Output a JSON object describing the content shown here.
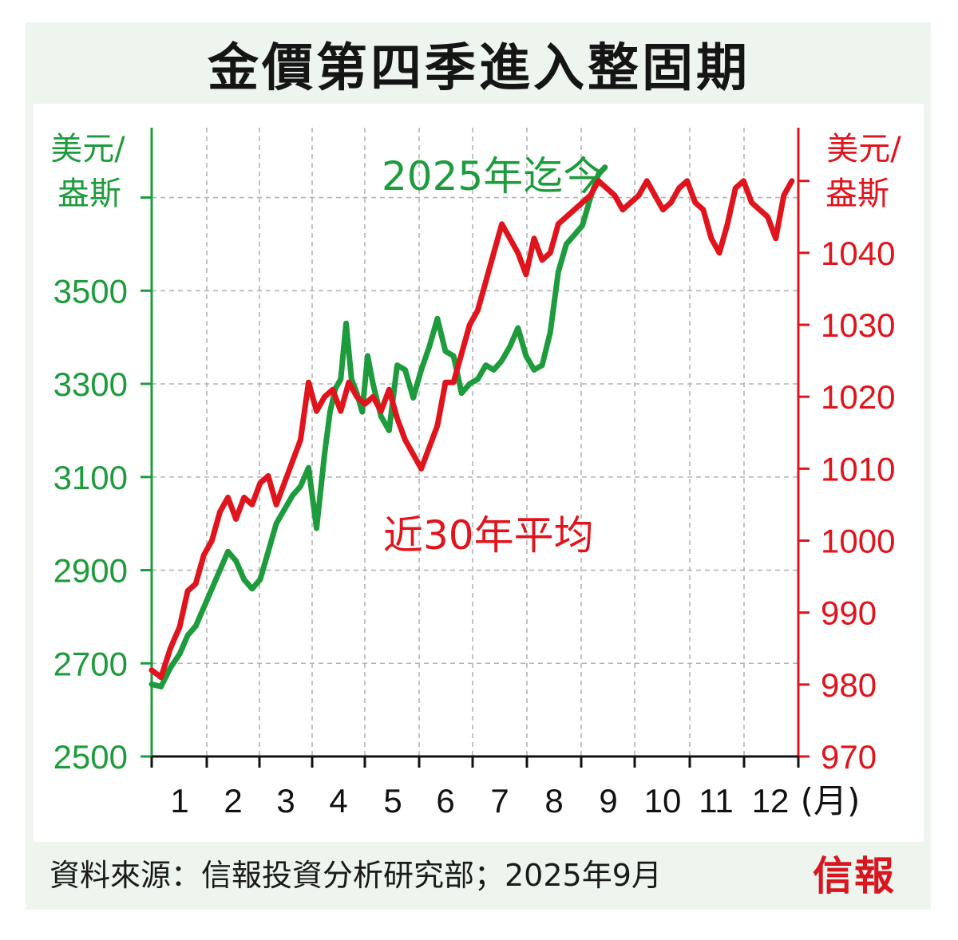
{
  "chart_data": {
    "type": "line",
    "title": "金價第四季進入整固期",
    "left_axis": {
      "unit_line1": "美元/",
      "unit_line2": "盎斯",
      "ticks": [
        2500,
        2700,
        2900,
        3100,
        3300,
        3500
      ],
      "range": [
        2500,
        3850
      ],
      "color": "#1e9b3c"
    },
    "right_axis": {
      "unit_line1": "美元/",
      "unit_line2": "盎斯",
      "ticks": [
        970,
        980,
        990,
        1000,
        1010,
        1020,
        1030,
        1040
      ],
      "range": [
        970,
        1057.4
      ],
      "color": "#e0141c"
    },
    "x_axis": {
      "categories": [
        "1",
        "2",
        "3",
        "4",
        "5",
        "6",
        "7",
        "8",
        "9",
        "10",
        "11",
        "12"
      ],
      "unit": "(月)",
      "range": [
        0.55,
        12.5
      ]
    },
    "grid": true,
    "series": [
      {
        "name": "2025年迄今",
        "axis": "left",
        "color": "#1e9b3c",
        "x": [
          0.55,
          0.7,
          0.85,
          1.0,
          1.15,
          1.3,
          1.45,
          1.6,
          1.75,
          1.9,
          2.05,
          2.2,
          2.35,
          2.5,
          2.65,
          2.8,
          2.95,
          3.1,
          3.25,
          3.4,
          3.55,
          3.7,
          3.8,
          3.9,
          4.0,
          4.1,
          4.2,
          4.3,
          4.4,
          4.5,
          4.6,
          4.75,
          4.9,
          5.05,
          5.2,
          5.35,
          5.5,
          5.65,
          5.8,
          5.95,
          6.1,
          6.25,
          6.4,
          6.55,
          6.7,
          6.85,
          7.0,
          7.15,
          7.3,
          7.45,
          7.6,
          7.75,
          7.9,
          8.05,
          8.2,
          8.35,
          8.5,
          8.65,
          8.8,
          8.92
        ],
        "values": [
          2655,
          2650,
          2690,
          2720,
          2760,
          2780,
          2820,
          2860,
          2900,
          2940,
          2920,
          2880,
          2860,
          2880,
          2940,
          3000,
          3030,
          3060,
          3080,
          3120,
          2990,
          3150,
          3240,
          3290,
          3310,
          3430,
          3310,
          3280,
          3240,
          3360,
          3300,
          3230,
          3200,
          3340,
          3330,
          3270,
          3330,
          3380,
          3440,
          3370,
          3360,
          3280,
          3300,
          3310,
          3340,
          3330,
          3350,
          3380,
          3420,
          3360,
          3330,
          3340,
          3410,
          3540,
          3600,
          3620,
          3640,
          3700,
          3750,
          3765
        ],
        "labels_on_chart": "2025年迄今"
      },
      {
        "name": "近30年平均",
        "axis": "right",
        "color": "#e0141c",
        "x": [
          0.55,
          0.7,
          0.85,
          1.0,
          1.15,
          1.3,
          1.45,
          1.6,
          1.75,
          1.9,
          2.05,
          2.2,
          2.35,
          2.5,
          2.65,
          2.8,
          2.95,
          3.1,
          3.25,
          3.4,
          3.55,
          3.7,
          3.85,
          4.0,
          4.15,
          4.3,
          4.45,
          4.6,
          4.75,
          4.9,
          5.05,
          5.2,
          5.35,
          5.5,
          5.65,
          5.8,
          5.95,
          6.1,
          6.25,
          6.4,
          6.55,
          6.7,
          6.85,
          7.0,
          7.15,
          7.3,
          7.45,
          7.6,
          7.75,
          7.9,
          8.05,
          8.2,
          8.35,
          8.5,
          8.65,
          8.8,
          8.95,
          9.1,
          9.25,
          9.4,
          9.55,
          9.7,
          9.85,
          10.0,
          10.15,
          10.3,
          10.45,
          10.6,
          10.75,
          10.9,
          11.05,
          11.2,
          11.35,
          11.5,
          11.65,
          11.8,
          11.95,
          12.1,
          12.25,
          12.4
        ],
        "values": [
          982,
          981,
          985,
          988,
          993,
          994,
          998,
          1000,
          1004,
          1006,
          1003,
          1006,
          1005,
          1008,
          1009,
          1005,
          1008,
          1011,
          1014,
          1022,
          1018,
          1020,
          1021,
          1018,
          1022,
          1020,
          1019,
          1020,
          1018,
          1021,
          1017,
          1014,
          1012,
          1010,
          1013,
          1016,
          1022,
          1022,
          1026,
          1030,
          1032,
          1036,
          1040,
          1044,
          1042,
          1040,
          1037,
          1042,
          1039,
          1040,
          1044,
          1045,
          1046,
          1047,
          1048,
          1050,
          1049,
          1048,
          1046,
          1047,
          1048,
          1050,
          1048,
          1046,
          1047,
          1049,
          1050,
          1047,
          1046,
          1042,
          1040,
          1044,
          1049,
          1050,
          1047,
          1046,
          1045,
          1042,
          1048,
          1050
        ],
        "labels_on_chart": "近30年平均"
      }
    ]
  },
  "footer": {
    "source": "資料來源：信報投資分析研究部；2025年9月",
    "brand": "信報"
  }
}
